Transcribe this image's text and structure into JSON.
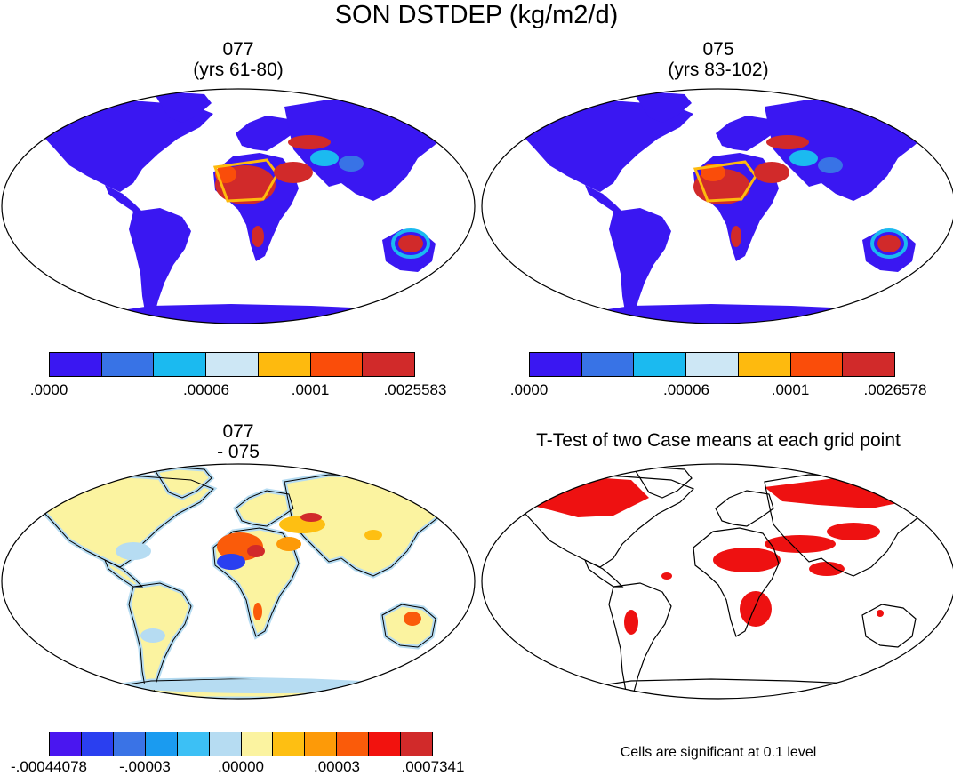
{
  "title": "SON DSTDEP (kg/m2/d)",
  "panels": {
    "top_left": {
      "case": "077",
      "years": "(yrs 61-80)"
    },
    "top_right": {
      "case": "075",
      "years": "(yrs 83-102)"
    },
    "bottom_left": {
      "case": "077",
      "diff": "- 075"
    },
    "bottom_right": {
      "title": "T-Test of two Case means at each grid point",
      "note": "Cells are significant at 0.1 level"
    }
  },
  "colorbars": {
    "top_left": {
      "colors": [
        "#3a17f2",
        "#3873e6",
        "#1bbaf0",
        "#cde7f5",
        "#feba0e",
        "#fa4d0a",
        "#d12a2a"
      ],
      "labels": [
        ".0000",
        ".00006",
        ".0001",
        ".0025583"
      ]
    },
    "top_right": {
      "colors": [
        "#3a17f2",
        "#3873e6",
        "#1bbaf0",
        "#cde7f5",
        "#feba0e",
        "#fa4d0a",
        "#d12a2a"
      ],
      "labels": [
        ".0000",
        ".00006",
        ".0001",
        ".0026578"
      ]
    },
    "diff": {
      "colors": [
        "#4a16f0",
        "#2a3ff0",
        "#3a73e6",
        "#1a9bf0",
        "#3cc0f5",
        "#b6dcf2",
        "#fbf3a0",
        "#febf12",
        "#fd9a08",
        "#fa5b0a",
        "#f2120e",
        "#d12a2a"
      ],
      "labels": [
        "-.00044078",
        "-.00003",
        ".00000",
        ".00003",
        ".0007341"
      ]
    }
  },
  "map_colors": {
    "land_low": "#3a17f2",
    "diff_land": "#fbf3a0",
    "significant": "#ee1111"
  }
}
